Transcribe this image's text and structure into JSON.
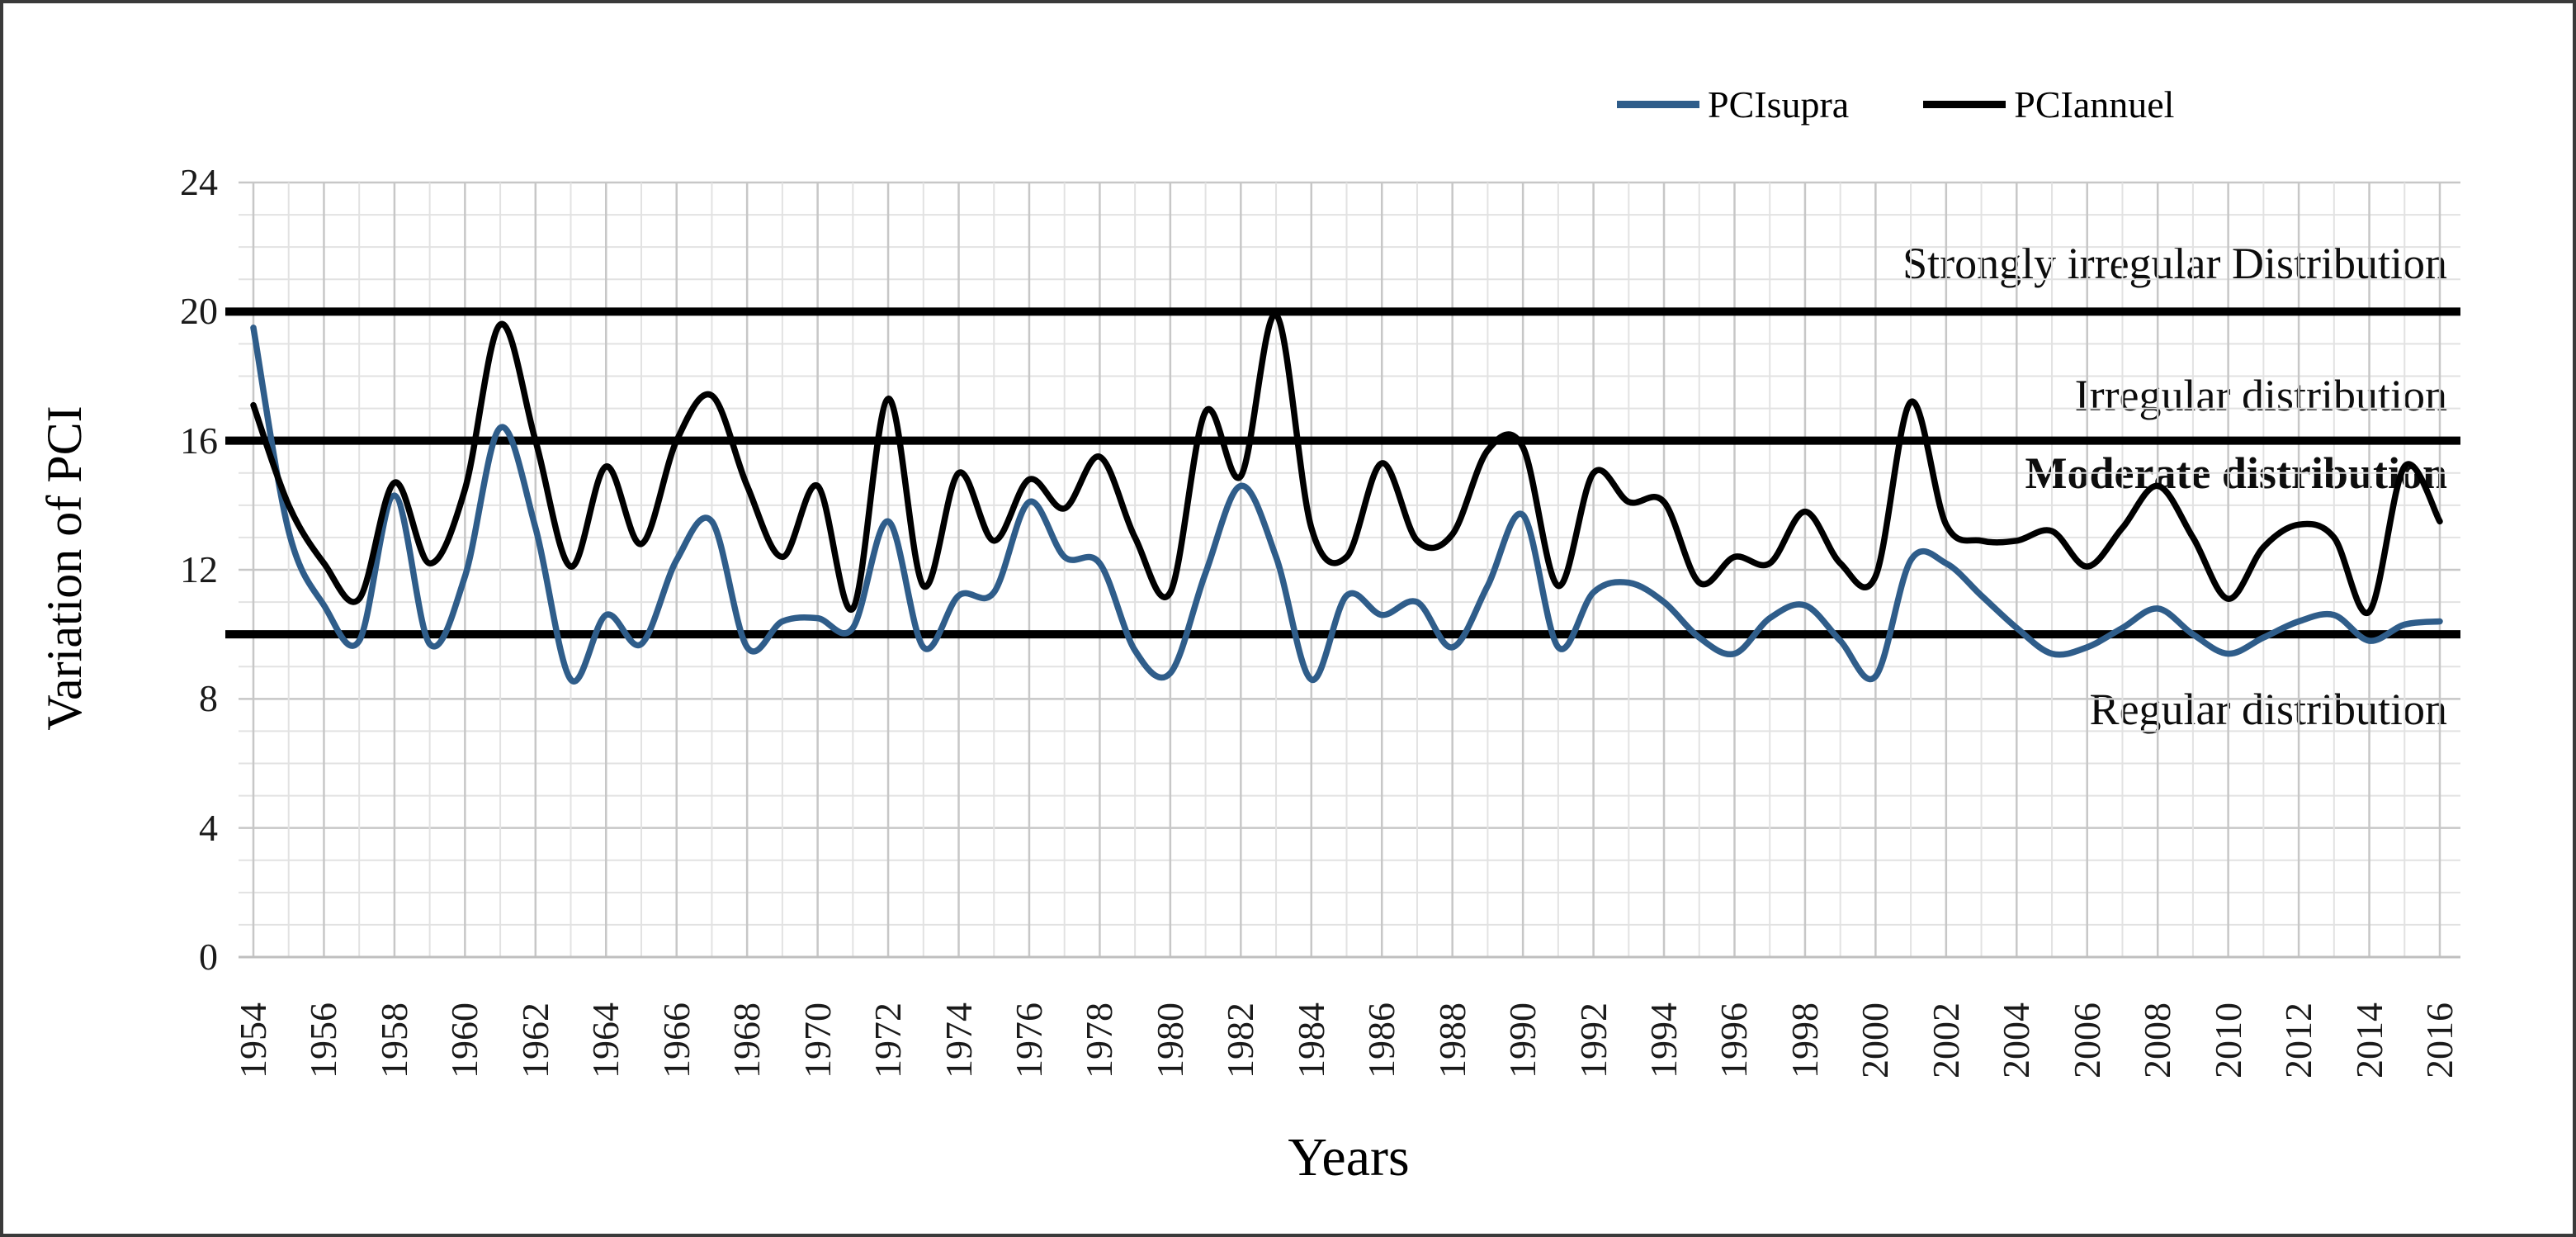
{
  "chart_data": {
    "type": "line",
    "title": "",
    "xlabel": "Years",
    "ylabel": "Variation of PCI",
    "ylim": [
      0,
      24
    ],
    "yticks": [
      0,
      4,
      8,
      12,
      16,
      20,
      24
    ],
    "xtick_step": 2,
    "grid": "on",
    "legend_position": "top-right",
    "x": [
      1954,
      1955,
      1956,
      1957,
      1958,
      1959,
      1960,
      1961,
      1962,
      1963,
      1964,
      1965,
      1966,
      1967,
      1968,
      1969,
      1970,
      1971,
      1972,
      1973,
      1974,
      1975,
      1976,
      1977,
      1978,
      1979,
      1980,
      1981,
      1982,
      1983,
      1984,
      1985,
      1986,
      1987,
      1988,
      1989,
      1990,
      1991,
      1992,
      1993,
      1994,
      1995,
      1996,
      1997,
      1998,
      1999,
      2000,
      2001,
      2002,
      2003,
      2004,
      2005,
      2006,
      2007,
      2008,
      2009,
      2010,
      2011,
      2012,
      2013,
      2014,
      2015,
      2016
    ],
    "series": [
      {
        "name": "PCIsupra",
        "color": "#2F5D8A",
        "values": [
          19.5,
          13.2,
          10.9,
          9.8,
          14.3,
          9.7,
          11.8,
          16.4,
          13.3,
          8.6,
          10.6,
          9.7,
          12.3,
          13.5,
          9.6,
          10.4,
          10.5,
          10.2,
          13.5,
          9.6,
          11.2,
          11.3,
          14.1,
          12.4,
          12.2,
          9.5,
          8.8,
          11.9,
          14.6,
          12.4,
          8.6,
          11.2,
          10.6,
          11.0,
          9.6,
          11.5,
          13.7,
          9.6,
          11.3,
          11.6,
          11.0,
          9.9,
          9.4,
          10.5,
          10.9,
          9.8,
          8.7,
          12.3,
          12.2,
          11.2,
          10.2,
          9.4,
          9.6,
          10.2,
          10.8,
          10.0,
          9.4,
          9.9,
          10.4,
          10.6,
          9.8,
          10.3,
          10.4
        ]
      },
      {
        "name": "PCIannuel",
        "color": "#000000",
        "values": [
          17.1,
          14.0,
          12.2,
          11.1,
          14.7,
          12.2,
          14.5,
          19.6,
          16.0,
          12.1,
          15.2,
          12.8,
          16.0,
          17.4,
          14.6,
          12.4,
          14.6,
          10.8,
          17.3,
          11.5,
          15.0,
          12.9,
          14.8,
          13.9,
          15.5,
          13.0,
          11.3,
          16.9,
          14.9,
          19.9,
          13.3,
          12.4,
          15.3,
          12.9,
          13.1,
          15.7,
          15.8,
          11.5,
          15.0,
          14.1,
          14.1,
          11.6,
          12.4,
          12.2,
          13.8,
          12.2,
          11.8,
          17.2,
          13.4,
          12.9,
          12.9,
          13.2,
          12.1,
          13.3,
          14.6,
          13.0,
          11.1,
          12.7,
          13.4,
          13.0,
          10.7,
          15.2,
          13.5
        ]
      }
    ],
    "threshold_lines": [
      {
        "value": 20,
        "color": "#000000"
      },
      {
        "value": 16,
        "color": "#000000"
      },
      {
        "value": 10,
        "color": "#000000"
      }
    ],
    "annotations": [
      {
        "id": "strongly",
        "text": "Strongly irregular Distribution",
        "bold": false,
        "zone": "above 20"
      },
      {
        "id": "irregular",
        "text": "Irregular distribution",
        "bold": false,
        "zone": "16 to 20"
      },
      {
        "id": "moderate",
        "text": "Moderate distribution",
        "bold": true,
        "zone": "10 to 16"
      },
      {
        "id": "regular",
        "text": "Regular distribution",
        "bold": false,
        "zone": "below 10"
      }
    ],
    "gridline_color_minor": "#E2E2E2",
    "gridline_color_major": "#C7C7C7"
  },
  "legend": {
    "items": [
      {
        "label": "PCIsupra",
        "color": "#2F5D8A"
      },
      {
        "label": "PCIannuel",
        "color": "#000000"
      }
    ]
  },
  "y_axis": {
    "title": "Variation of PCI"
  },
  "x_axis": {
    "title": "Years"
  }
}
